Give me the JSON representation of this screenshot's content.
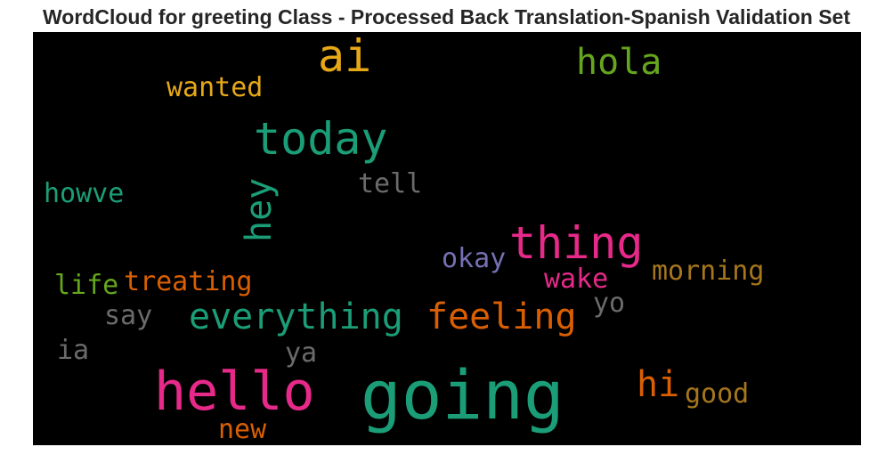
{
  "title": "WordCloud for greeting Class - Processed Back Translation-Spanish Validation Set",
  "words": [
    {
      "text": "ai",
      "color": "#e6a817"
    },
    {
      "text": "hola",
      "color": "#66a61e"
    },
    {
      "text": "wanted",
      "color": "#e6a817"
    },
    {
      "text": "today",
      "color": "#1b9e77"
    },
    {
      "text": "tell",
      "color": "#6b6b6b"
    },
    {
      "text": "howve",
      "color": "#1b9e77"
    },
    {
      "text": "hey",
      "color": "#1b9e77"
    },
    {
      "text": "thing",
      "color": "#e7298a"
    },
    {
      "text": "okay",
      "color": "#7570b3"
    },
    {
      "text": "life",
      "color": "#66a61e"
    },
    {
      "text": "treating",
      "color": "#d95f02"
    },
    {
      "text": "wake",
      "color": "#e7298a"
    },
    {
      "text": "morning",
      "color": "#a6761d"
    },
    {
      "text": "say",
      "color": "#6b6b6b"
    },
    {
      "text": "everything",
      "color": "#1b9e77"
    },
    {
      "text": "feeling",
      "color": "#d95f02"
    },
    {
      "text": "yo",
      "color": "#6b6b6b"
    },
    {
      "text": "ia",
      "color": "#6b6b6b"
    },
    {
      "text": "ya",
      "color": "#6b6b6b"
    },
    {
      "text": "hello",
      "color": "#e7298a"
    },
    {
      "text": "going",
      "color": "#1b9e77"
    },
    {
      "text": "hi",
      "color": "#d95f02"
    },
    {
      "text": "good",
      "color": "#a6761d"
    },
    {
      "text": "new",
      "color": "#d95f02"
    }
  ]
}
